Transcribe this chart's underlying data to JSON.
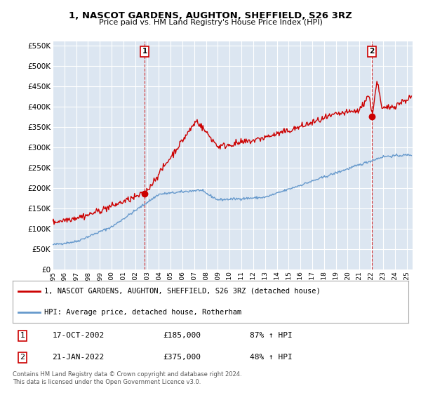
{
  "title": "1, NASCOT GARDENS, AUGHTON, SHEFFIELD, S26 3RZ",
  "subtitle": "Price paid vs. HM Land Registry's House Price Index (HPI)",
  "ylim": [
    0,
    560000
  ],
  "yticks": [
    0,
    50000,
    100000,
    150000,
    200000,
    250000,
    300000,
    350000,
    400000,
    450000,
    500000,
    550000
  ],
  "ytick_labels": [
    "£0",
    "£50K",
    "£100K",
    "£150K",
    "£200K",
    "£250K",
    "£300K",
    "£350K",
    "£400K",
    "£450K",
    "£500K",
    "£550K"
  ],
  "red_line_color": "#cc0000",
  "blue_line_color": "#6699cc",
  "background_color": "#dce6f1",
  "grid_color": "#ffffff",
  "sale1_date": 2002.8,
  "sale1_price": 185000,
  "sale1_label": "1",
  "sale1_date_str": "17-OCT-2002",
  "sale1_price_str": "£185,000",
  "sale1_hpi": "87% ↑ HPI",
  "sale2_date": 2022.05,
  "sale2_price": 375000,
  "sale2_label": "2",
  "sale2_date_str": "21-JAN-2022",
  "sale2_price_str": "£375,000",
  "sale2_hpi": "48% ↑ HPI",
  "legend_line1": "1, NASCOT GARDENS, AUGHTON, SHEFFIELD, S26 3RZ (detached house)",
  "legend_line2": "HPI: Average price, detached house, Rotherham",
  "footnote": "Contains HM Land Registry data © Crown copyright and database right 2024.\nThis data is licensed under the Open Government Licence v3.0.",
  "xmin": 1995.0,
  "xmax": 2025.5
}
